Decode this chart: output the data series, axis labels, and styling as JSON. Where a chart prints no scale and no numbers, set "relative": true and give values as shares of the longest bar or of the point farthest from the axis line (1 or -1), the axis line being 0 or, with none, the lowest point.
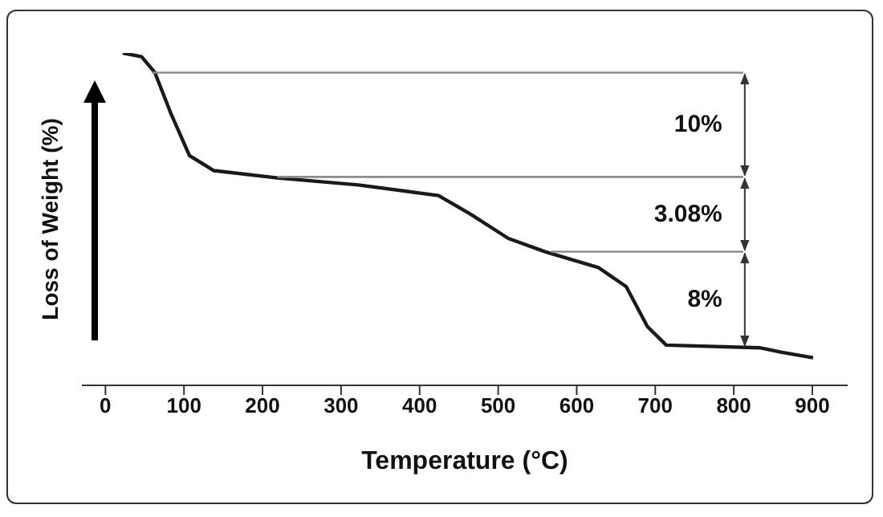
{
  "chart_data": {
    "type": "line",
    "relative": true,
    "xlabel": "Temperature (°C)",
    "ylabel": "Loss of Weight (%)",
    "xlim": [
      -30,
      945
    ],
    "xticks": [
      0,
      100,
      200,
      300,
      400,
      500,
      600,
      700,
      800,
      900
    ],
    "marker": "none",
    "series": [
      {
        "color": "#1a1a1a",
        "x": [
          22,
          46,
          63,
          83,
          107,
          138,
          219,
          322,
          424,
          465,
          513,
          560,
          628,
          663,
          690,
          714,
          833,
          860,
          901
        ],
        "values": [
          1.0,
          0.989,
          0.941,
          0.82,
          0.691,
          0.646,
          0.624,
          0.603,
          0.571,
          0.515,
          0.442,
          0.402,
          0.354,
          0.297,
          0.177,
          0.121,
          0.113,
          0.1,
          0.083
        ]
      },
      {
        "color": "#8c8c8c",
        "x": [
          59,
          812
        ],
        "values": [
          0.941,
          0.941
        ]
      },
      {
        "color": "#8c8c8c",
        "x": [
          219,
          812
        ],
        "values": [
          0.627,
          0.627
        ]
      },
      {
        "color": "#8c8c8c",
        "x": [
          567,
          812
        ],
        "values": [
          0.402,
          0.402
        ]
      }
    ],
    "annotations": [
      "10%",
      "3.08%",
      "8%"
    ]
  }
}
